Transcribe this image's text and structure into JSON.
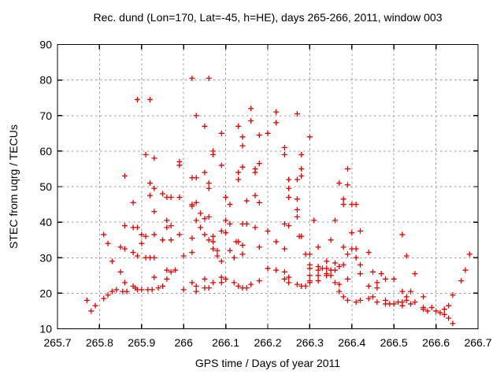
{
  "chart_data": {
    "type": "scatter",
    "title": "Rec. dund (Lon=170, Lat=-45, h=HE), days 265-266, 2011, window 003",
    "xlabel": "GPS time / Days of year 2011",
    "ylabel": "STEC from uqrg / TECUs",
    "xlim": [
      265.7,
      266.7
    ],
    "ylim": [
      10,
      90
    ],
    "xtick_values": [
      265.7,
      265.8,
      265.9,
      266,
      266.1,
      266.2,
      266.3,
      266.4,
      266.5,
      266.6,
      266.7
    ],
    "xtick_labels": [
      "265.7",
      "265.8",
      "265.9",
      "266",
      "266.1",
      "266.2",
      "266.3",
      "266.4",
      "266.5",
      "266.6",
      "266.7"
    ],
    "ytick_values": [
      10,
      20,
      30,
      40,
      50,
      60,
      70,
      80,
      90
    ],
    "ytick_labels": [
      "10",
      "20",
      "30",
      "40",
      "50",
      "60",
      "70",
      "80",
      "90"
    ],
    "grid": true,
    "grid_color": "#9a9a9a",
    "frame_color": "#000000",
    "marker": {
      "shape": "plus",
      "color": "#e60000",
      "size": 7
    },
    "legend": "none",
    "series": [
      {
        "name": "STEC from uqrg",
        "points": [
          [
            265.77,
            18
          ],
          [
            265.78,
            15
          ],
          [
            265.79,
            16.5
          ],
          [
            265.81,
            18.5
          ],
          [
            265.81,
            36.5
          ],
          [
            265.82,
            19.5
          ],
          [
            265.82,
            34
          ],
          [
            265.83,
            20.5
          ],
          [
            265.83,
            29
          ],
          [
            265.84,
            21
          ],
          [
            265.85,
            26
          ],
          [
            265.85,
            33
          ],
          [
            265.855,
            20.5
          ],
          [
            265.86,
            23
          ],
          [
            265.86,
            32.5
          ],
          [
            265.86,
            39
          ],
          [
            265.86,
            53
          ],
          [
            265.865,
            20.5
          ],
          [
            265.88,
            22
          ],
          [
            265.88,
            31.5
          ],
          [
            265.88,
            38.5
          ],
          [
            265.88,
            45.5
          ],
          [
            265.885,
            21.5
          ],
          [
            265.89,
            21
          ],
          [
            265.89,
            30.5
          ],
          [
            265.89,
            38.5
          ],
          [
            265.89,
            74.5
          ],
          [
            265.9,
            21
          ],
          [
            265.9,
            34
          ],
          [
            265.9,
            36.5
          ],
          [
            265.91,
            30
          ],
          [
            265.91,
            36
          ],
          [
            265.91,
            59
          ],
          [
            265.915,
            21
          ],
          [
            265.92,
            30
          ],
          [
            265.92,
            47.5
          ],
          [
            265.92,
            51
          ],
          [
            265.92,
            74.5
          ],
          [
            265.925,
            21
          ],
          [
            265.93,
            24.5
          ],
          [
            265.93,
            30
          ],
          [
            265.93,
            36.5
          ],
          [
            265.93,
            43
          ],
          [
            265.93,
            49.5
          ],
          [
            265.93,
            58
          ],
          [
            265.94,
            21.5
          ],
          [
            265.95,
            22
          ],
          [
            265.95,
            35
          ],
          [
            265.95,
            48
          ],
          [
            265.96,
            24
          ],
          [
            265.96,
            26.5
          ],
          [
            265.96,
            38.5
          ],
          [
            265.96,
            40.5
          ],
          [
            265.96,
            47
          ],
          [
            265.97,
            26
          ],
          [
            265.97,
            35
          ],
          [
            265.97,
            39
          ],
          [
            265.97,
            47
          ],
          [
            265.98,
            26.5
          ],
          [
            265.99,
            36.5
          ],
          [
            265.99,
            47
          ],
          [
            265.99,
            56
          ],
          [
            265.99,
            57
          ],
          [
            266.0,
            21
          ],
          [
            266.0,
            30.5
          ],
          [
            266.02,
            23
          ],
          [
            266.02,
            31.5
          ],
          [
            266.02,
            35.5
          ],
          [
            266.02,
            44.5
          ],
          [
            266.02,
            45
          ],
          [
            266.02,
            52.5
          ],
          [
            266.02,
            80.5
          ],
          [
            266.03,
            20.5
          ],
          [
            266.03,
            22
          ],
          [
            266.03,
            40.5
          ],
          [
            266.03,
            45.5
          ],
          [
            266.03,
            52.5
          ],
          [
            266.03,
            70
          ],
          [
            266.04,
            38.5
          ],
          [
            266.04,
            42.5
          ],
          [
            266.05,
            21.5
          ],
          [
            266.05,
            24
          ],
          [
            266.05,
            36.5
          ],
          [
            266.05,
            41
          ],
          [
            266.05,
            54
          ],
          [
            266.05,
            67
          ],
          [
            266.06,
            21.5
          ],
          [
            266.06,
            35
          ],
          [
            266.06,
            41.5
          ],
          [
            266.06,
            49.5
          ],
          [
            266.06,
            51
          ],
          [
            266.06,
            80.5
          ],
          [
            266.07,
            23
          ],
          [
            266.07,
            32.5
          ],
          [
            266.07,
            34.5
          ],
          [
            266.07,
            36
          ],
          [
            266.07,
            59
          ],
          [
            266.07,
            60
          ],
          [
            266.08,
            30.5
          ],
          [
            266.08,
            32
          ],
          [
            266.09,
            23
          ],
          [
            266.09,
            24.5
          ],
          [
            266.09,
            29
          ],
          [
            266.09,
            37.5
          ],
          [
            266.09,
            56
          ],
          [
            266.09,
            65
          ],
          [
            266.1,
            24
          ],
          [
            266.1,
            37
          ],
          [
            266.1,
            40.5
          ],
          [
            266.1,
            47
          ],
          [
            266.11,
            32
          ],
          [
            266.11,
            39.5
          ],
          [
            266.11,
            45
          ],
          [
            266.12,
            23
          ],
          [
            266.12,
            30
          ],
          [
            266.125,
            34.5
          ],
          [
            266.13,
            22
          ],
          [
            266.13,
            34.5
          ],
          [
            266.13,
            52
          ],
          [
            266.13,
            54
          ],
          [
            266.13,
            67
          ],
          [
            266.14,
            21.5
          ],
          [
            266.14,
            31
          ],
          [
            266.14,
            33.5
          ],
          [
            266.14,
            39.5
          ],
          [
            266.14,
            55.5
          ],
          [
            266.14,
            61.5
          ],
          [
            266.14,
            64
          ],
          [
            266.15,
            21.5
          ],
          [
            266.15,
            39.5
          ],
          [
            266.15,
            46
          ],
          [
            266.16,
            22.5
          ],
          [
            266.16,
            68.5
          ],
          [
            266.16,
            72
          ],
          [
            266.17,
            38.5
          ],
          [
            266.17,
            47.5
          ],
          [
            266.17,
            54
          ],
          [
            266.17,
            55
          ],
          [
            266.18,
            23.5
          ],
          [
            266.18,
            33
          ],
          [
            266.18,
            45.5
          ],
          [
            266.18,
            56.5
          ],
          [
            266.18,
            64.5
          ],
          [
            266.2,
            27
          ],
          [
            266.2,
            37.5
          ],
          [
            266.2,
            65
          ],
          [
            266.22,
            26.5
          ],
          [
            266.22,
            34.5
          ],
          [
            266.22,
            68
          ],
          [
            266.22,
            71
          ],
          [
            266.24,
            24
          ],
          [
            266.24,
            26
          ],
          [
            266.24,
            32.5
          ],
          [
            266.24,
            39.5
          ],
          [
            266.24,
            59
          ],
          [
            266.24,
            61
          ],
          [
            266.25,
            23
          ],
          [
            266.25,
            24.5
          ],
          [
            266.25,
            39
          ],
          [
            266.25,
            47
          ],
          [
            266.25,
            49.5
          ],
          [
            266.25,
            52
          ],
          [
            266.27,
            22.5
          ],
          [
            266.27,
            41.5
          ],
          [
            266.27,
            43.5
          ],
          [
            266.27,
            46.5
          ],
          [
            266.27,
            52
          ],
          [
            266.27,
            70.5
          ],
          [
            266.275,
            36
          ],
          [
            266.28,
            22
          ],
          [
            266.28,
            36
          ],
          [
            266.28,
            53
          ],
          [
            266.28,
            55
          ],
          [
            266.28,
            59
          ],
          [
            266.29,
            22
          ],
          [
            266.29,
            31
          ],
          [
            266.3,
            23
          ],
          [
            266.3,
            23.5
          ],
          [
            266.3,
            25
          ],
          [
            266.3,
            27
          ],
          [
            266.3,
            28
          ],
          [
            266.3,
            31
          ],
          [
            266.3,
            64
          ],
          [
            266.31,
            40.5
          ],
          [
            266.32,
            23.5
          ],
          [
            266.32,
            25
          ],
          [
            266.32,
            26.5
          ],
          [
            266.32,
            27.5
          ],
          [
            266.32,
            33
          ],
          [
            266.33,
            27
          ],
          [
            266.34,
            25
          ],
          [
            266.34,
            25.5
          ],
          [
            266.34,
            27
          ],
          [
            266.34,
            29
          ],
          [
            266.35,
            25
          ],
          [
            266.35,
            26.5
          ],
          [
            266.35,
            35
          ],
          [
            266.36,
            23
          ],
          [
            266.36,
            26.5
          ],
          [
            266.36,
            28.5
          ],
          [
            266.36,
            40.5
          ],
          [
            266.37,
            20.5
          ],
          [
            266.37,
            22.5
          ],
          [
            266.37,
            27.5
          ],
          [
            266.37,
            51
          ],
          [
            266.38,
            19
          ],
          [
            266.38,
            28
          ],
          [
            266.38,
            33
          ],
          [
            266.38,
            45
          ],
          [
            266.38,
            46.5
          ],
          [
            266.39,
            18
          ],
          [
            266.39,
            24
          ],
          [
            266.39,
            31
          ],
          [
            266.39,
            50.5
          ],
          [
            266.39,
            55
          ],
          [
            266.4,
            32.5
          ],
          [
            266.4,
            37
          ],
          [
            266.4,
            45
          ],
          [
            266.41,
            17.5
          ],
          [
            266.41,
            30
          ],
          [
            266.41,
            32.5
          ],
          [
            266.41,
            45
          ],
          [
            266.42,
            18
          ],
          [
            266.42,
            25.5
          ],
          [
            266.42,
            28
          ],
          [
            266.42,
            37.5
          ],
          [
            266.44,
            18.5
          ],
          [
            266.44,
            22
          ],
          [
            266.44,
            31.5
          ],
          [
            266.45,
            19
          ],
          [
            266.45,
            26
          ],
          [
            266.46,
            17.5
          ],
          [
            266.46,
            21.5
          ],
          [
            266.46,
            23
          ],
          [
            266.47,
            25.5
          ],
          [
            266.48,
            17
          ],
          [
            266.48,
            18
          ],
          [
            266.48,
            24
          ],
          [
            266.49,
            17
          ],
          [
            266.5,
            17
          ],
          [
            266.5,
            24
          ],
          [
            266.51,
            17.5
          ],
          [
            266.52,
            16.5
          ],
          [
            266.52,
            17.5
          ],
          [
            266.52,
            20.5
          ],
          [
            266.52,
            36.5
          ],
          [
            266.53,
            18
          ],
          [
            266.53,
            19
          ],
          [
            266.53,
            30.5
          ],
          [
            266.54,
            17
          ],
          [
            266.54,
            20.5
          ],
          [
            266.55,
            17.5
          ],
          [
            266.55,
            25.5
          ],
          [
            266.57,
            15.5
          ],
          [
            266.57,
            16
          ],
          [
            266.57,
            19
          ],
          [
            266.58,
            15
          ],
          [
            266.59,
            16
          ],
          [
            266.6,
            15
          ],
          [
            266.61,
            14.5
          ],
          [
            266.62,
            14
          ],
          [
            266.62,
            15.5
          ],
          [
            266.63,
            13
          ],
          [
            266.63,
            16.5
          ],
          [
            266.64,
            11.5
          ],
          [
            266.64,
            19.5
          ],
          [
            266.66,
            23.5
          ],
          [
            266.67,
            26.5
          ],
          [
            266.68,
            31
          ]
        ]
      }
    ]
  }
}
